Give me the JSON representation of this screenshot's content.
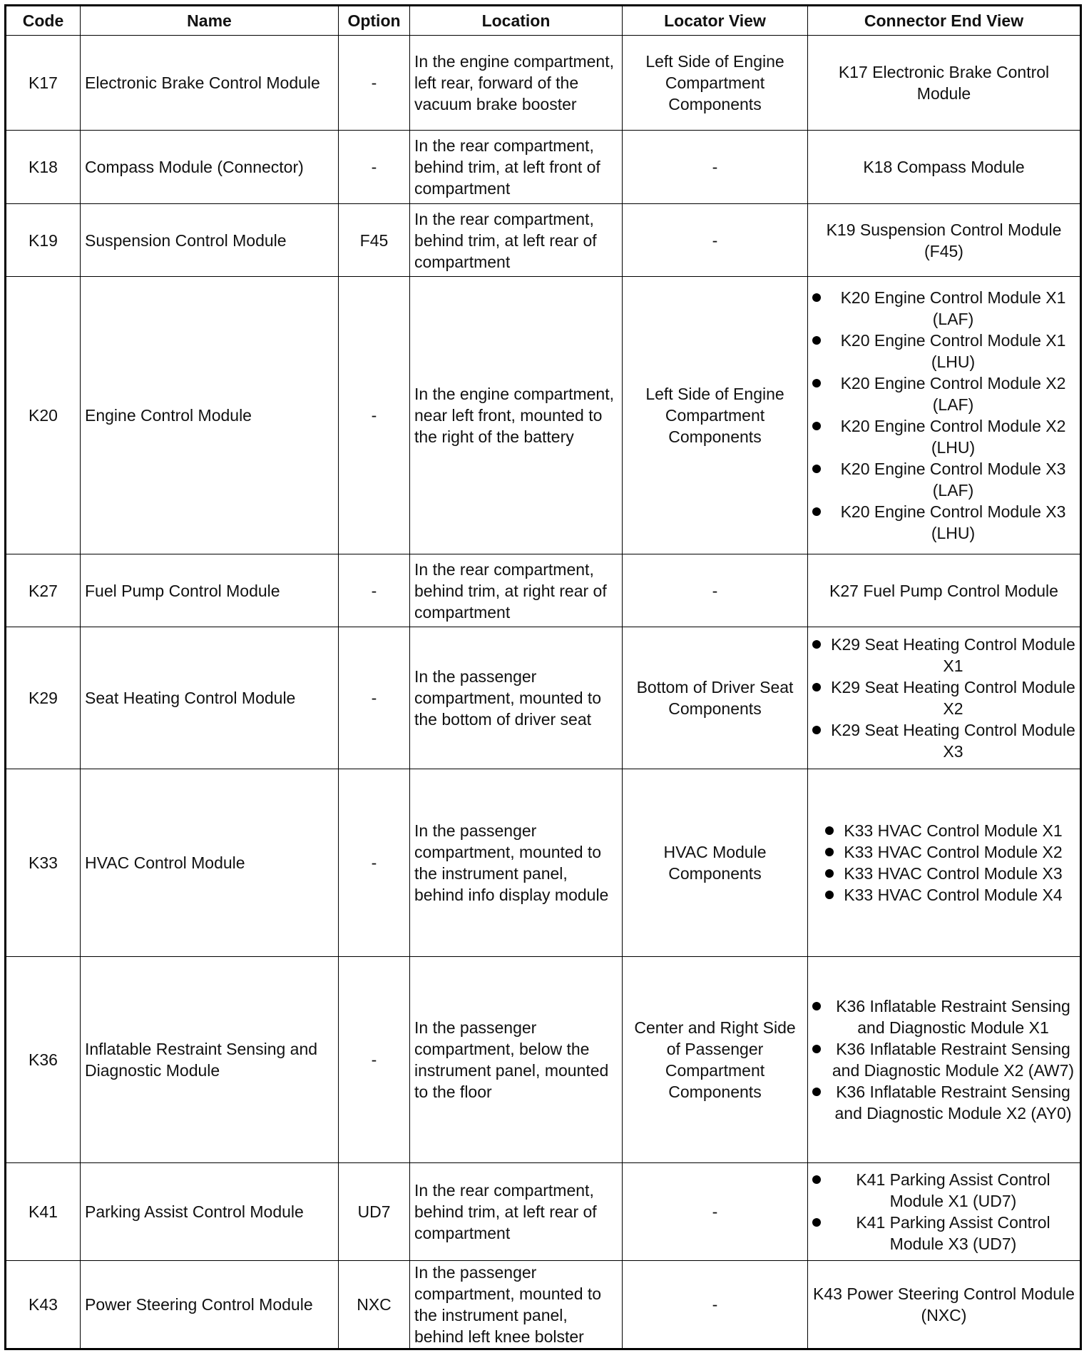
{
  "headers": [
    "Code",
    "Name",
    "Option",
    "Location",
    "Locator View",
    "Connector End View"
  ],
  "rows": [
    {
      "code": "K17",
      "name": "Electronic Brake Control Module",
      "option": "-",
      "location": "In the engine compartment, left rear, forward of the vacuum brake booster",
      "locator": "Left Side of Engine Compartment Components",
      "connectors": [
        "K17 Electronic Brake Control Module"
      ]
    },
    {
      "code": "K18",
      "name": "Compass Module (Connector)",
      "option": "-",
      "location": "In the rear compartment, behind trim, at left front of compartment",
      "locator": "-",
      "connectors": [
        "K18 Compass Module"
      ]
    },
    {
      "code": "K19",
      "name": "Suspension Control Module",
      "option": "F45",
      "location": "In the rear compartment, behind trim, at left rear of compartment",
      "locator": "-",
      "connectors": [
        "K19 Suspension Control Module (F45)"
      ]
    },
    {
      "code": "K20",
      "name": "Engine Control Module",
      "option": "-",
      "location": "In the engine compartment, near left front, mounted to the right of the battery",
      "locator": "Left Side of Engine Compartment Components",
      "connectors": [
        "K20 Engine Control Module X1 (LAF)",
        "K20 Engine Control Module X1 (LHU)",
        "K20 Engine Control Module X2 (LAF)",
        "K20 Engine Control Module X2 (LHU)",
        "K20 Engine Control Module X3 (LAF)",
        "K20 Engine Control Module X3 (LHU)"
      ]
    },
    {
      "code": "K27",
      "name": "Fuel Pump Control Module",
      "option": "-",
      "location": "In the rear compartment, behind trim, at right rear of compartment",
      "locator": "-",
      "connectors": [
        "K27 Fuel Pump Control Module"
      ]
    },
    {
      "code": "K29",
      "name": "Seat Heating Control Module",
      "option": "-",
      "location": "In the passenger compartment, mounted to the bottom of driver seat",
      "locator": "Bottom of Driver Seat Components",
      "connectors": [
        "K29 Seat Heating Control Module X1",
        "K29 Seat Heating Control Module X2",
        "K29 Seat Heating Control Module X3"
      ]
    },
    {
      "code": "K33",
      "name": "HVAC Control Module",
      "option": "-",
      "location": "In the passenger compartment, mounted to the instrument panel, behind info display module",
      "locator": "HVAC Module Components",
      "connectors": [
        "K33 HVAC Control Module X1",
        "K33 HVAC Control Module X2",
        "K33 HVAC Control Module X3",
        "K33 HVAC Control Module X4"
      ]
    },
    {
      "code": "K36",
      "name": "Inflatable Restraint Sensing and Diagnostic Module",
      "option": "-",
      "location": "In the passenger compartment, below the instrument panel, mounted to the floor",
      "locator": "Center and Right Side of Passenger Compartment Components",
      "connectors": [
        "K36 Inflatable Restraint Sensing and Diagnostic Module X1",
        "K36 Inflatable Restraint Sensing and Diagnostic Module X2 (AW7)",
        "K36 Inflatable Restraint Sensing and Diagnostic Module X2 (AY0)"
      ]
    },
    {
      "code": "K41",
      "name": "Parking Assist Control Module",
      "option": "UD7",
      "location": "In the rear compartment, behind trim, at left rear of compartment",
      "locator": "-",
      "connectors": [
        "K41 Parking Assist Control Module X1 (UD7)",
        "K41 Parking Assist Control Module X3 (UD7)"
      ]
    },
    {
      "code": "K43",
      "name": "Power Steering Control Module",
      "option": "NXC",
      "location": "In the passenger compartment, mounted to the instrument panel, behind left knee bolster",
      "locator": "-",
      "connectors": [
        "K43 Power Steering Control Module (NXC)"
      ]
    }
  ]
}
